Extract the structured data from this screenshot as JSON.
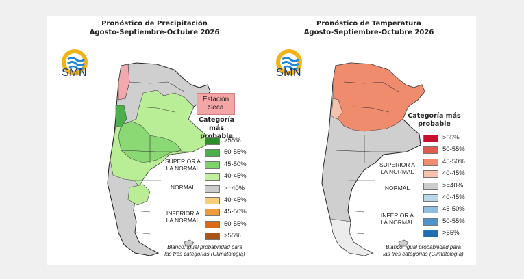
{
  "precip": {
    "title_line1": "Pronóstico de Precipitación",
    "title_line2": "Agosto-Septiembre-Octubre 2026",
    "logo_text": "SMN",
    "dry_label_line1": "Estación",
    "dry_label_line2": "Seca",
    "cat_line1": "Categoría más",
    "cat_line2": "probable",
    "groups": {
      "sup_line1": "SUPERIOR A",
      "sup_line2": "LA NORMAL",
      "normal": "NORMAL",
      "inf_line1": "INFERIOR A",
      "inf_line2": "LA NORMAL"
    },
    "legend": [
      {
        "label": ">55%",
        "color": "#2e8b2e"
      },
      {
        "label": "50-55%",
        "color": "#4caf4c"
      },
      {
        "label": "45-50%",
        "color": "#7fd36a"
      },
      {
        "label": "40-45%",
        "color": "#c2ef9e"
      },
      {
        "label": ">=40%",
        "color": "#cccccc"
      },
      {
        "label": "40-45%",
        "color": "#f7cf7c"
      },
      {
        "label": "45-50%",
        "color": "#ee9b3a"
      },
      {
        "label": "50-55%",
        "color": "#d86a1a"
      },
      {
        "label": ">55%",
        "color": "#a8541a"
      }
    ],
    "note_line1": "Blanco: igual probabilidad para",
    "note_line2": "las tres categorías (Climatología)"
  },
  "temp": {
    "title_line1": "Pronóstico de Temperatura",
    "title_line2": "Agosto-Septiembre-Octubre 2026",
    "logo_text": "SMN",
    "cat_line1": "Categoría más",
    "cat_line2": "probable",
    "groups": {
      "sup_line1": "SUPERIOR A",
      "sup_line2": "LA NORMAL",
      "normal": "NORMAL",
      "inf_line1": "INFERIOR A",
      "inf_line2": "LA NORMAL"
    },
    "legend": [
      {
        "label": ">55%",
        "color": "#c8102e"
      },
      {
        "label": "50-55%",
        "color": "#e05a4e"
      },
      {
        "label": "45-50%",
        "color": "#f08c6e"
      },
      {
        "label": "40-45%",
        "color": "#f6c2ad"
      },
      {
        "label": ">=40%",
        "color": "#cccccc"
      },
      {
        "label": "40-45%",
        "color": "#b9d7ea"
      },
      {
        "label": "45-50%",
        "color": "#8fbde0"
      },
      {
        "label": "50-55%",
        "color": "#4f93c8"
      },
      {
        "label": ">55%",
        "color": "#1f6fb0"
      }
    ],
    "note_line1": "Blanco: igual probabilidad para",
    "note_line2": "las tres categorías (Climatología)"
  }
}
